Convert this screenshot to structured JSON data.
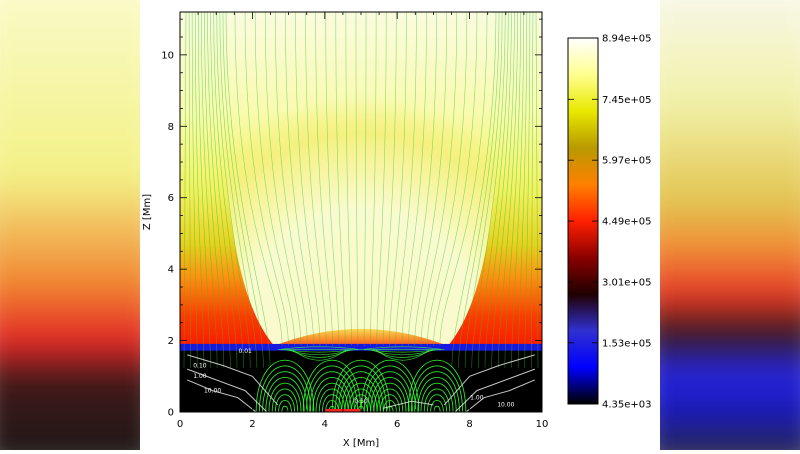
{
  "chart_data": {
    "type": "heatmap",
    "title": "",
    "xlabel": "X [Mm]",
    "ylabel": "Z [Mm]",
    "xlim": [
      0,
      10
    ],
    "ylim": [
      0,
      11.2
    ],
    "xticks": [
      0,
      2,
      4,
      6,
      8,
      10
    ],
    "yticks": [
      0,
      2,
      4,
      6,
      8,
      10
    ],
    "field": {
      "description_of_layers": "temperature map with magnetic field lines",
      "transition_region_height": 1.85,
      "hot_region_walls_x": [
        2.6,
        7.4
      ],
      "cool_floor_top": 1.8
    },
    "colorbar": {
      "min": 4350,
      "max": 894000,
      "tick_labels": [
        "8.94e+05",
        "7.45e+05",
        "5.97e+05",
        "4.49e+05",
        "3.01e+05",
        "1.53e+05",
        "4.35e+03"
      ],
      "tick_values": [
        894000,
        745000,
        597000,
        449000,
        301000,
        153000,
        4350
      ],
      "colors": [
        "#000000",
        "#0000ff",
        "#3030d0",
        "#200000",
        "#8b0000",
        "#ff2000",
        "#ff8000",
        "#b89a00",
        "#e8e800",
        "#ffff90",
        "#ffffff"
      ]
    },
    "contour_labels": [
      "0.10",
      "1.00",
      "10.00",
      "0.01",
      "0.10",
      "1.00",
      "10.00"
    ],
    "field_line_color": "#22cc22",
    "source_marker_x": [
      4.0,
      5.0
    ]
  }
}
